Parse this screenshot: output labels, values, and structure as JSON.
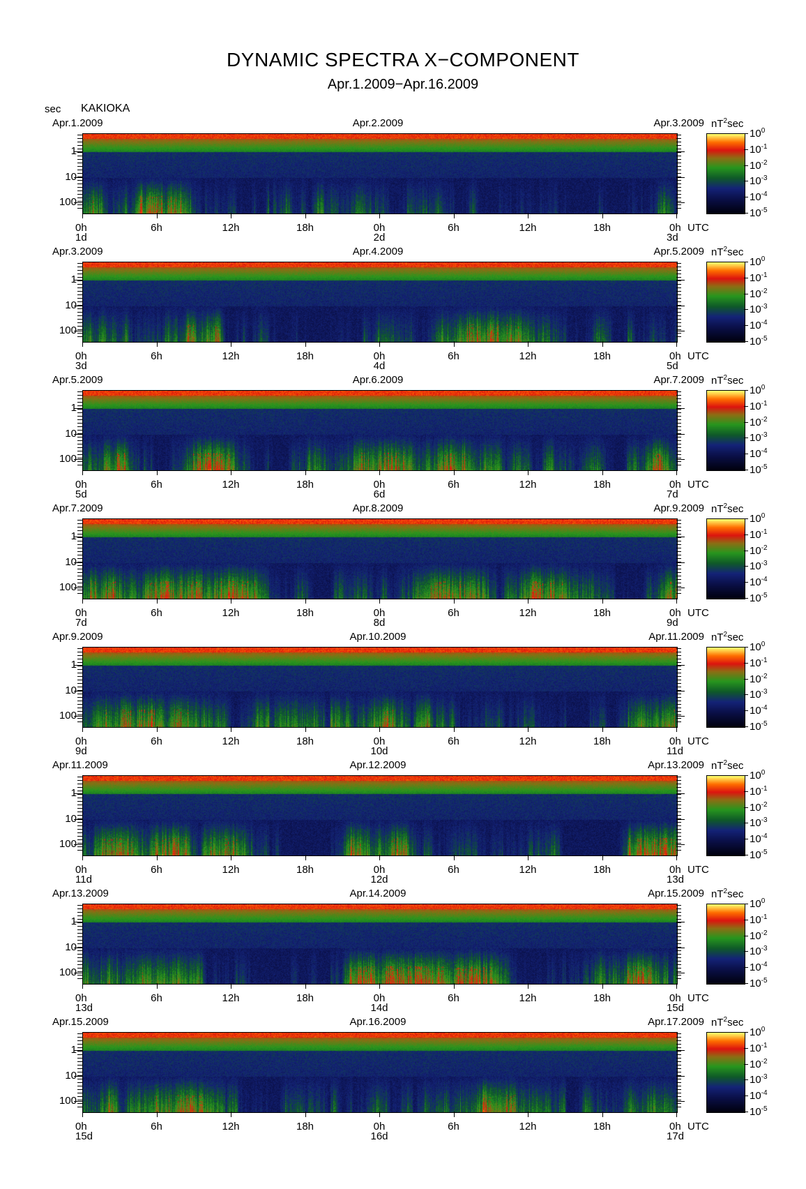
{
  "title": "DYNAMIC SPECTRA X−COMPONENT",
  "subtitle": "Apr.1.2009−Apr.16.2009",
  "y_unit": "sec",
  "station": "KAKIOKA",
  "colorbar_unit": "nT",
  "colorbar_unit_sup": "2",
  "colorbar_unit_tail": "sec",
  "colorbar_ticks": [
    {
      "base": "10",
      "exp": "0"
    },
    {
      "base": "10",
      "exp": "-1"
    },
    {
      "base": "10",
      "exp": "-2"
    },
    {
      "base": "10",
      "exp": "-3"
    },
    {
      "base": "10",
      "exp": "-4"
    },
    {
      "base": "10",
      "exp": "-5"
    }
  ],
  "colors": {
    "low": "#000010",
    "blue": "#10207a",
    "green": "#1e8a1e",
    "red": "#e01010",
    "orange": "#ff8000",
    "high": "#ffff60"
  },
  "chart_data": {
    "type": "heatmap",
    "y_ticks": [
      "1",
      "10",
      "100"
    ],
    "x_ticks": [
      "0h",
      "6h",
      "12h",
      "18h",
      "0h",
      "6h",
      "12h",
      "18h",
      "0h"
    ],
    "x_unit": "UTC",
    "panels": [
      {
        "left_date": "Apr.1.2009",
        "mid_date": "Apr.2.2009",
        "right_date": "Apr.3.2009",
        "day_labels": [
          "1d",
          "2d",
          "3d"
        ]
      },
      {
        "left_date": "Apr.3.2009",
        "mid_date": "Apr.4.2009",
        "right_date": "Apr.5.2009",
        "day_labels": [
          "3d",
          "4d",
          "5d"
        ]
      },
      {
        "left_date": "Apr.5.2009",
        "mid_date": "Apr.6.2009",
        "right_date": "Apr.7.2009",
        "day_labels": [
          "5d",
          "6d",
          "7d"
        ]
      },
      {
        "left_date": "Apr.7.2009",
        "mid_date": "Apr.8.2009",
        "right_date": "Apr.9.2009",
        "day_labels": [
          "7d",
          "8d",
          "9d"
        ]
      },
      {
        "left_date": "Apr.9.2009",
        "mid_date": "Apr.10.2009",
        "right_date": "Apr.11.2009",
        "day_labels": [
          "9d",
          "10d",
          "11d"
        ]
      },
      {
        "left_date": "Apr.11.2009",
        "mid_date": "Apr.12.2009",
        "right_date": "Apr.13.2009",
        "day_labels": [
          "11d",
          "12d",
          "13d"
        ]
      },
      {
        "left_date": "Apr.13.2009",
        "mid_date": "Apr.14.2009",
        "right_date": "Apr.15.2009",
        "day_labels": [
          "13d",
          "14d",
          "15d"
        ]
      },
      {
        "left_date": "Apr.15.2009",
        "mid_date": "Apr.16.2009",
        "right_date": "Apr.17.2009",
        "day_labels": [
          "15d",
          "16d",
          "17d"
        ]
      }
    ]
  }
}
